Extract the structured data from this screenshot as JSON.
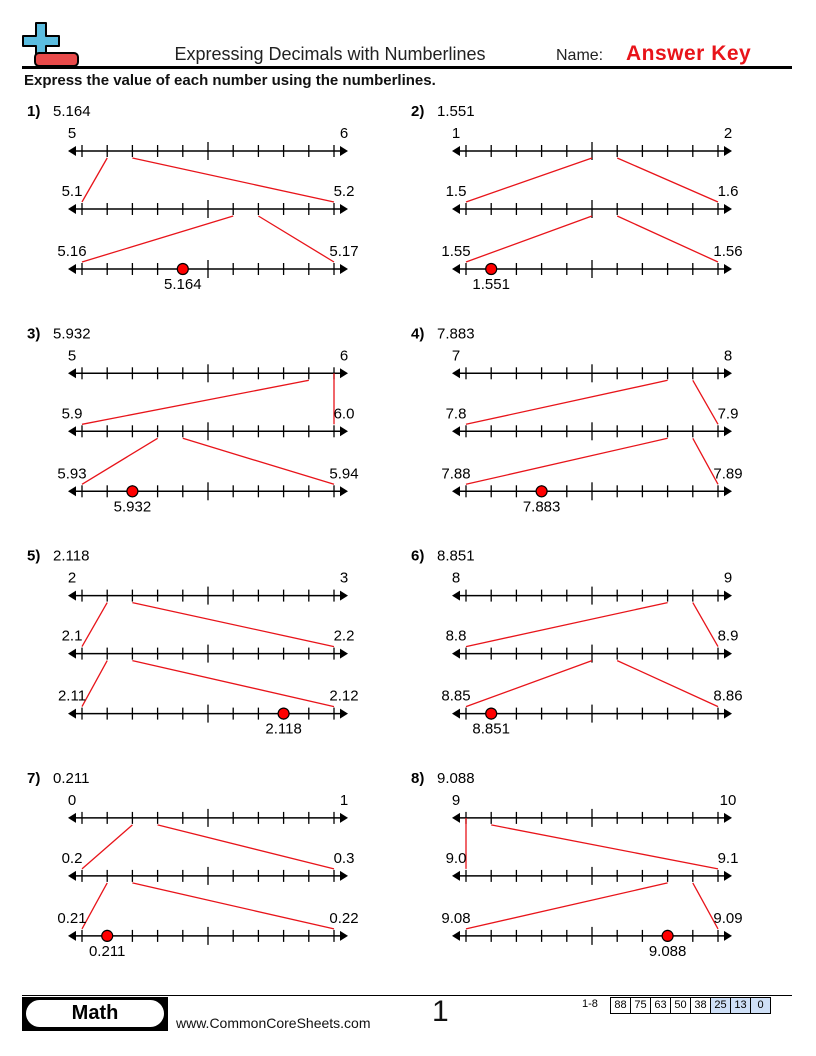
{
  "header": {
    "title": "Expressing Decimals with Numberlines",
    "name_label": "Name:",
    "name_value": "Answer Key",
    "instructions": "Express the value of each number using the numberlines.",
    "logo_icon": "plus-minus-logo-icon"
  },
  "colors": {
    "accent": "#e8141a",
    "logo_blue": "#5bbde0",
    "logo_red": "#e84a4a",
    "score_highlight": "#cfe0f7"
  },
  "problems": [
    {
      "number": "1)",
      "value": "5.164",
      "levels": [
        [
          "5",
          "6"
        ],
        [
          "5.1",
          "5.2"
        ],
        [
          "5.16",
          "5.17"
        ]
      ],
      "answer": "5.164"
    },
    {
      "number": "2)",
      "value": "1.551",
      "levels": [
        [
          "1",
          "2"
        ],
        [
          "1.5",
          "1.6"
        ],
        [
          "1.55",
          "1.56"
        ]
      ],
      "answer": "1.551"
    },
    {
      "number": "3)",
      "value": "5.932",
      "levels": [
        [
          "5",
          "6"
        ],
        [
          "5.9",
          "6.0"
        ],
        [
          "5.93",
          "5.94"
        ]
      ],
      "answer": "5.932"
    },
    {
      "number": "4)",
      "value": "7.883",
      "levels": [
        [
          "7",
          "8"
        ],
        [
          "7.8",
          "7.9"
        ],
        [
          "7.88",
          "7.89"
        ]
      ],
      "answer": "7.883"
    },
    {
      "number": "5)",
      "value": "2.118",
      "levels": [
        [
          "2",
          "3"
        ],
        [
          "2.1",
          "2.2"
        ],
        [
          "2.11",
          "2.12"
        ]
      ],
      "answer": "2.118"
    },
    {
      "number": "6)",
      "value": "8.851",
      "levels": [
        [
          "8",
          "9"
        ],
        [
          "8.8",
          "8.9"
        ],
        [
          "8.85",
          "8.86"
        ]
      ],
      "answer": "8.851"
    },
    {
      "number": "7)",
      "value": "0.211",
      "levels": [
        [
          "0",
          "1"
        ],
        [
          "0.2",
          "0.3"
        ],
        [
          "0.21",
          "0.22"
        ]
      ],
      "answer": "0.211"
    },
    {
      "number": "8)",
      "value": "9.088",
      "levels": [
        [
          "9",
          "10"
        ],
        [
          "9.0",
          "9.1"
        ],
        [
          "9.08",
          "9.09"
        ]
      ],
      "answer": "9.088"
    }
  ],
  "footer": {
    "subject": "Math",
    "site": "www.CommonCoreSheets.com",
    "page": "1",
    "range": "1-8",
    "scores": [
      "88",
      "75",
      "63",
      "50",
      "38",
      "25",
      "13",
      "0"
    ]
  }
}
